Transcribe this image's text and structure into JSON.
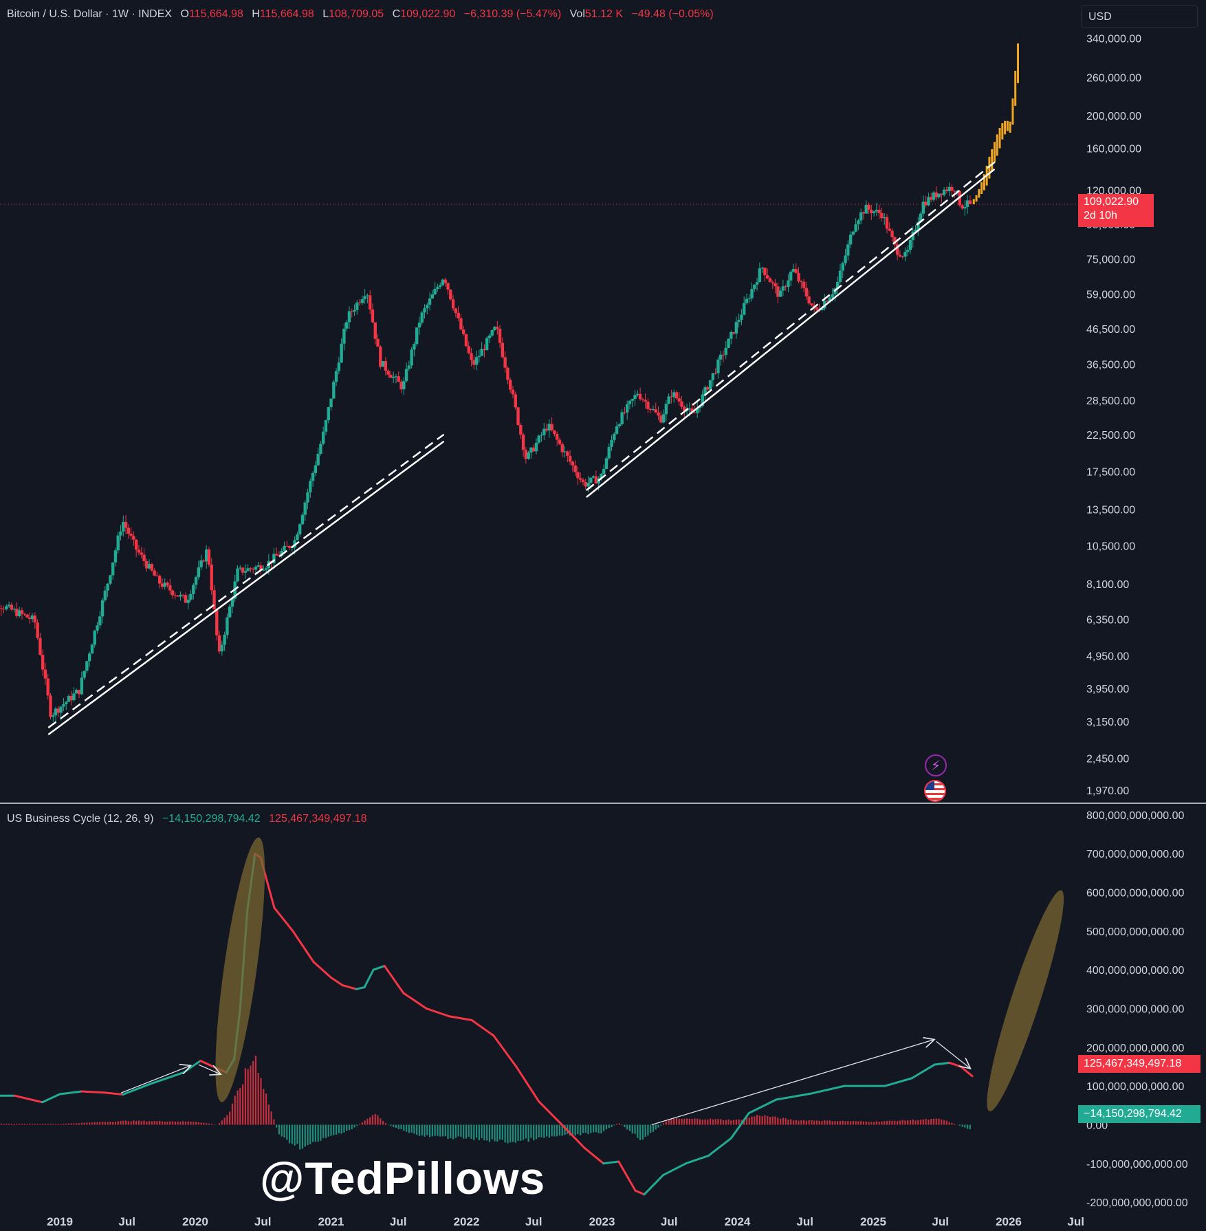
{
  "header": {
    "symbol": "Bitcoin / U.S. Dollar · 1W · INDEX",
    "o_label": "O",
    "o_value": "115,664.98",
    "h_label": "H",
    "h_value": "115,664.98",
    "l_label": "L",
    "l_value": "108,709.05",
    "c_label": "C",
    "c_value": "109,022.90",
    "change": "−6,310.39 (−5.47%)",
    "vol_label": "Vol",
    "vol_value": "51.12 K",
    "vol_change": "−49.48 (−0.05%)"
  },
  "currency": "USD",
  "price_tag": {
    "price": "109,022.90",
    "countdown": "2d 10h"
  },
  "oscillator": {
    "title": "US Business Cycle (12, 26, 9)",
    "histogram_value": "−14,150,298,794.42",
    "line_value": "125,467,349,497.18"
  },
  "watermark": "@TedPillows",
  "colors": {
    "background": "#131722",
    "up": "#22ab94",
    "down": "#f23645",
    "projection": "#f0a620",
    "highlight": "#7a6530",
    "text": "#d1d4dc"
  },
  "icons": [
    "bolt-icon",
    "us-flag-icon"
  ],
  "chart_data": [
    {
      "type": "candlestick",
      "series_name": "Bitcoin / U.S. Dollar",
      "scale": "log",
      "ylim": [
        1800,
        380000
      ],
      "y_ticks": [
        "340,000.00",
        "260,000.00",
        "200,000.00",
        "160,000.00",
        "120,000.00",
        "95,000.00",
        "75,000.00",
        "59,000.00",
        "46,500.00",
        "36,500.00",
        "28,500.00",
        "22,500.00",
        "17,500.00",
        "13,500.00",
        "10,500.00",
        "8,100.00",
        "6,350.00",
        "4,950.00",
        "3,950.00",
        "3,150.00",
        "2,450.00",
        "1,970.00"
      ],
      "x_ticks": [
        "2019",
        "Jul",
        "2020",
        "Jul",
        "2021",
        "Jul",
        "2022",
        "Jul",
        "2023",
        "Jul",
        "2024",
        "Jul",
        "2025",
        "Jul",
        "2026",
        "Jul"
      ],
      "price_path": [
        [
          "2018-06-01",
          7500
        ],
        [
          "2018-11-01",
          6300
        ],
        [
          "2018-12-15",
          3300
        ],
        [
          "2019-03-01",
          3900
        ],
        [
          "2019-05-15",
          8000
        ],
        [
          "2019-06-26",
          12500
        ],
        [
          "2019-08-01",
          10300
        ],
        [
          "2019-10-01",
          8200
        ],
        [
          "2019-12-15",
          7200
        ],
        [
          "2020-02-10",
          10300
        ],
        [
          "2020-03-12",
          4900
        ],
        [
          "2020-05-01",
          8800
        ],
        [
          "2020-07-15",
          9200
        ],
        [
          "2020-10-01",
          10800
        ],
        [
          "2020-12-20",
          23000
        ],
        [
          "2021-02-20",
          50000
        ],
        [
          "2021-04-14",
          61000
        ],
        [
          "2021-05-20",
          37000
        ],
        [
          "2021-07-20",
          31000
        ],
        [
          "2021-09-05",
          50000
        ],
        [
          "2021-11-08",
          67000
        ],
        [
          "2022-01-24",
          36000
        ],
        [
          "2022-03-29",
          47000
        ],
        [
          "2022-05-10",
          30000
        ],
        [
          "2022-06-18",
          19000
        ],
        [
          "2022-08-15",
          24000
        ],
        [
          "2022-11-20",
          16000
        ],
        [
          "2023-01-05",
          16800
        ],
        [
          "2023-02-15",
          24000
        ],
        [
          "2023-04-14",
          30000
        ],
        [
          "2023-06-15",
          25000
        ],
        [
          "2023-07-15",
          30000
        ],
        [
          "2023-09-11",
          25500
        ],
        [
          "2023-12-15",
          42500
        ],
        [
          "2024-03-14",
          71000
        ],
        [
          "2024-05-01",
          58000
        ],
        [
          "2024-06-05",
          70000
        ],
        [
          "2024-08-05",
          52000
        ],
        [
          "2024-10-01",
          62000
        ],
        [
          "2024-11-20",
          97000
        ],
        [
          "2024-12-17",
          106000
        ],
        [
          "2025-02-01",
          102000
        ],
        [
          "2025-03-10",
          80000
        ],
        [
          "2025-04-07",
          76000
        ],
        [
          "2025-05-22",
          110000
        ],
        [
          "2025-07-14",
          120000
        ],
        [
          "2025-08-14",
          123000
        ],
        [
          "2025-09-01",
          108000
        ],
        [
          "2025-09-25",
          109022.9
        ]
      ],
      "last_price": 109022.9,
      "projection": [
        [
          "2025-09-29",
          109000,
          113000
        ],
        [
          "2025-10-06",
          111000,
          116000
        ],
        [
          "2025-10-13",
          114000,
          121000
        ],
        [
          "2025-10-20",
          117000,
          127000
        ],
        [
          "2025-10-27",
          120000,
          134000
        ],
        [
          "2025-11-03",
          124000,
          142000
        ],
        [
          "2025-11-10",
          130000,
          151000
        ],
        [
          "2025-11-17",
          137000,
          159000
        ],
        [
          "2025-11-24",
          145000,
          167000
        ],
        [
          "2025-12-01",
          152000,
          176000
        ],
        [
          "2025-12-08",
          160000,
          184000
        ],
        [
          "2025-12-15",
          170000,
          190000
        ],
        [
          "2025-12-22",
          176000,
          193000
        ],
        [
          "2025-12-29",
          180000,
          193000
        ],
        [
          "2026-01-05",
          178000,
          192000
        ],
        [
          "2026-01-12",
          188000,
          225000
        ],
        [
          "2026-01-19",
          214000,
          272000
        ],
        [
          "2026-01-26",
          250000,
          328000
        ]
      ],
      "trendlines": [
        {
          "from": [
            "2018-12-01",
            2950
          ],
          "to": [
            "2021-11-01",
            22000
          ]
        },
        {
          "from": [
            "2022-11-20",
            15000
          ],
          "to": [
            "2025-11-24",
            142000
          ]
        }
      ]
    },
    {
      "type": "line+histogram",
      "series_name": "US Business Cycle (12, 26, 9)",
      "ylim": [
        -230000000000,
        830000000000
      ],
      "y_ticks": [
        "800,000,000,000.00",
        "700,000,000,000.00",
        "600,000,000,000.00",
        "500,000,000,000.00",
        "400,000,000,000.00",
        "300,000,000,000.00",
        "200,000,000,000.00",
        "100,000,000,000.00",
        "0.00",
        "-100,000,000,000.00",
        "-200,000,000,000.00"
      ],
      "line": [
        [
          "2018-06-01",
          75000000000
        ],
        [
          "2018-09-01",
          75000000000
        ],
        [
          "2018-11-15",
          58000000000
        ],
        [
          "2019-01-01",
          79000000000
        ],
        [
          "2019-03-01",
          86000000000
        ],
        [
          "2019-05-01",
          83000000000
        ],
        [
          "2019-06-20",
          78000000000
        ],
        [
          "2019-09-01",
          105000000000
        ],
        [
          "2019-12-01",
          135000000000
        ],
        [
          "2020-01-15",
          165000000000
        ],
        [
          "2020-03-01",
          145000000000
        ],
        [
          "2020-03-25",
          135000000000
        ],
        [
          "2020-04-15",
          170000000000
        ],
        [
          "2020-05-01",
          300000000000
        ],
        [
          "2020-05-20",
          550000000000
        ],
        [
          "2020-06-10",
          700000000000
        ],
        [
          "2020-06-25",
          690000000000
        ],
        [
          "2020-08-01",
          560000000000
        ],
        [
          "2020-09-20",
          500000000000
        ],
        [
          "2020-11-15",
          420000000000
        ],
        [
          "2021-01-01",
          380000000000
        ],
        [
          "2021-02-01",
          360000000000
        ],
        [
          "2021-03-10",
          350000000000
        ],
        [
          "2021-04-01",
          355000000000
        ],
        [
          "2021-04-25",
          400000000000
        ],
        [
          "2021-05-25",
          410000000000
        ],
        [
          "2021-07-15",
          340000000000
        ],
        [
          "2021-09-15",
          300000000000
        ],
        [
          "2021-11-15",
          280000000000
        ],
        [
          "2022-01-15",
          270000000000
        ],
        [
          "2022-03-15",
          230000000000
        ],
        [
          "2022-05-15",
          150000000000
        ],
        [
          "2022-07-15",
          60000000000
        ],
        [
          "2022-09-15",
          0
        ],
        [
          "2022-11-15",
          -60000000000
        ],
        [
          "2023-01-05",
          -100000000000
        ],
        [
          "2023-02-15",
          -95000000000
        ],
        [
          "2023-04-01",
          -170000000000
        ],
        [
          "2023-04-25",
          -180000000000
        ],
        [
          "2023-06-15",
          -130000000000
        ],
        [
          "2023-08-15",
          -100000000000
        ],
        [
          "2023-10-15",
          -80000000000
        ],
        [
          "2023-12-15",
          -35000000000
        ],
        [
          "2024-02-01",
          30000000000
        ],
        [
          "2024-04-15",
          65000000000
        ],
        [
          "2024-07-15",
          80000000000
        ],
        [
          "2024-10-15",
          100000000000
        ],
        [
          "2024-12-15",
          100000000000
        ],
        [
          "2025-02-01",
          100000000000
        ],
        [
          "2025-04-15",
          120000000000
        ],
        [
          "2025-06-15",
          155000000000
        ],
        [
          "2025-07-25",
          160000000000
        ],
        [
          "2025-08-25",
          150000000000
        ],
        [
          "2025-09-25",
          125467349497.18
        ]
      ],
      "histogram": [
        [
          "2018-06-01",
          3000000000
        ],
        [
          "2019-01-01",
          2000000000
        ],
        [
          "2019-07-01",
          10000000000
        ],
        [
          "2020-01-01",
          8000000000
        ],
        [
          "2020-03-01",
          0
        ],
        [
          "2020-04-01",
          30000000000
        ],
        [
          "2020-05-15",
          130000000000
        ],
        [
          "2020-06-10",
          180000000000
        ],
        [
          "2020-07-15",
          60000000000
        ],
        [
          "2020-08-15",
          -30000000000
        ],
        [
          "2020-10-15",
          -60000000000
        ],
        [
          "2021-01-01",
          -30000000000
        ],
        [
          "2021-03-01",
          -10000000000
        ],
        [
          "2021-05-01",
          30000000000
        ],
        [
          "2021-06-01",
          0
        ],
        [
          "2021-09-01",
          -30000000000
        ],
        [
          "2022-01-01",
          -35000000000
        ],
        [
          "2022-05-01",
          -45000000000
        ],
        [
          "2022-09-01",
          -30000000000
        ],
        [
          "2023-01-01",
          -20000000000
        ],
        [
          "2023-02-15",
          5000000000
        ],
        [
          "2023-04-20",
          -40000000000
        ],
        [
          "2023-07-01",
          15000000000
        ],
        [
          "2023-10-01",
          15000000000
        ],
        [
          "2024-01-01",
          12000000000
        ],
        [
          "2024-03-01",
          25000000000
        ],
        [
          "2024-06-01",
          12000000000
        ],
        [
          "2025-01-01",
          8000000000
        ],
        [
          "2025-07-01",
          15000000000
        ],
        [
          "2025-09-25",
          -14150298794.42
        ]
      ],
      "highlights": [
        {
          "center": [
            "2020-05-01",
            400000000000
          ],
          "rx_days": 80,
          "ry": 345000000000,
          "rotate_deg": 8
        },
        {
          "center": [
            "2026-02-15",
            320000000000
          ],
          "rx_days": 70,
          "ry": 300000000000,
          "rotate_deg": 18
        }
      ],
      "arrows": [
        {
          "from": [
            "2019-06-15",
            82000000000
          ],
          "to": [
            "2019-12-20",
            153000000000
          ]
        },
        {
          "from": [
            "2020-01-10",
            155000000000
          ],
          "to": [
            "2020-03-10",
            130000000000
          ]
        },
        {
          "from": [
            "2023-05-15",
            0
          ],
          "to": [
            "2025-06-15",
            220000000000
          ]
        },
        {
          "from": [
            "2025-06-20",
            215000000000
          ],
          "to": [
            "2025-09-20",
            145000000000
          ]
        }
      ]
    }
  ]
}
